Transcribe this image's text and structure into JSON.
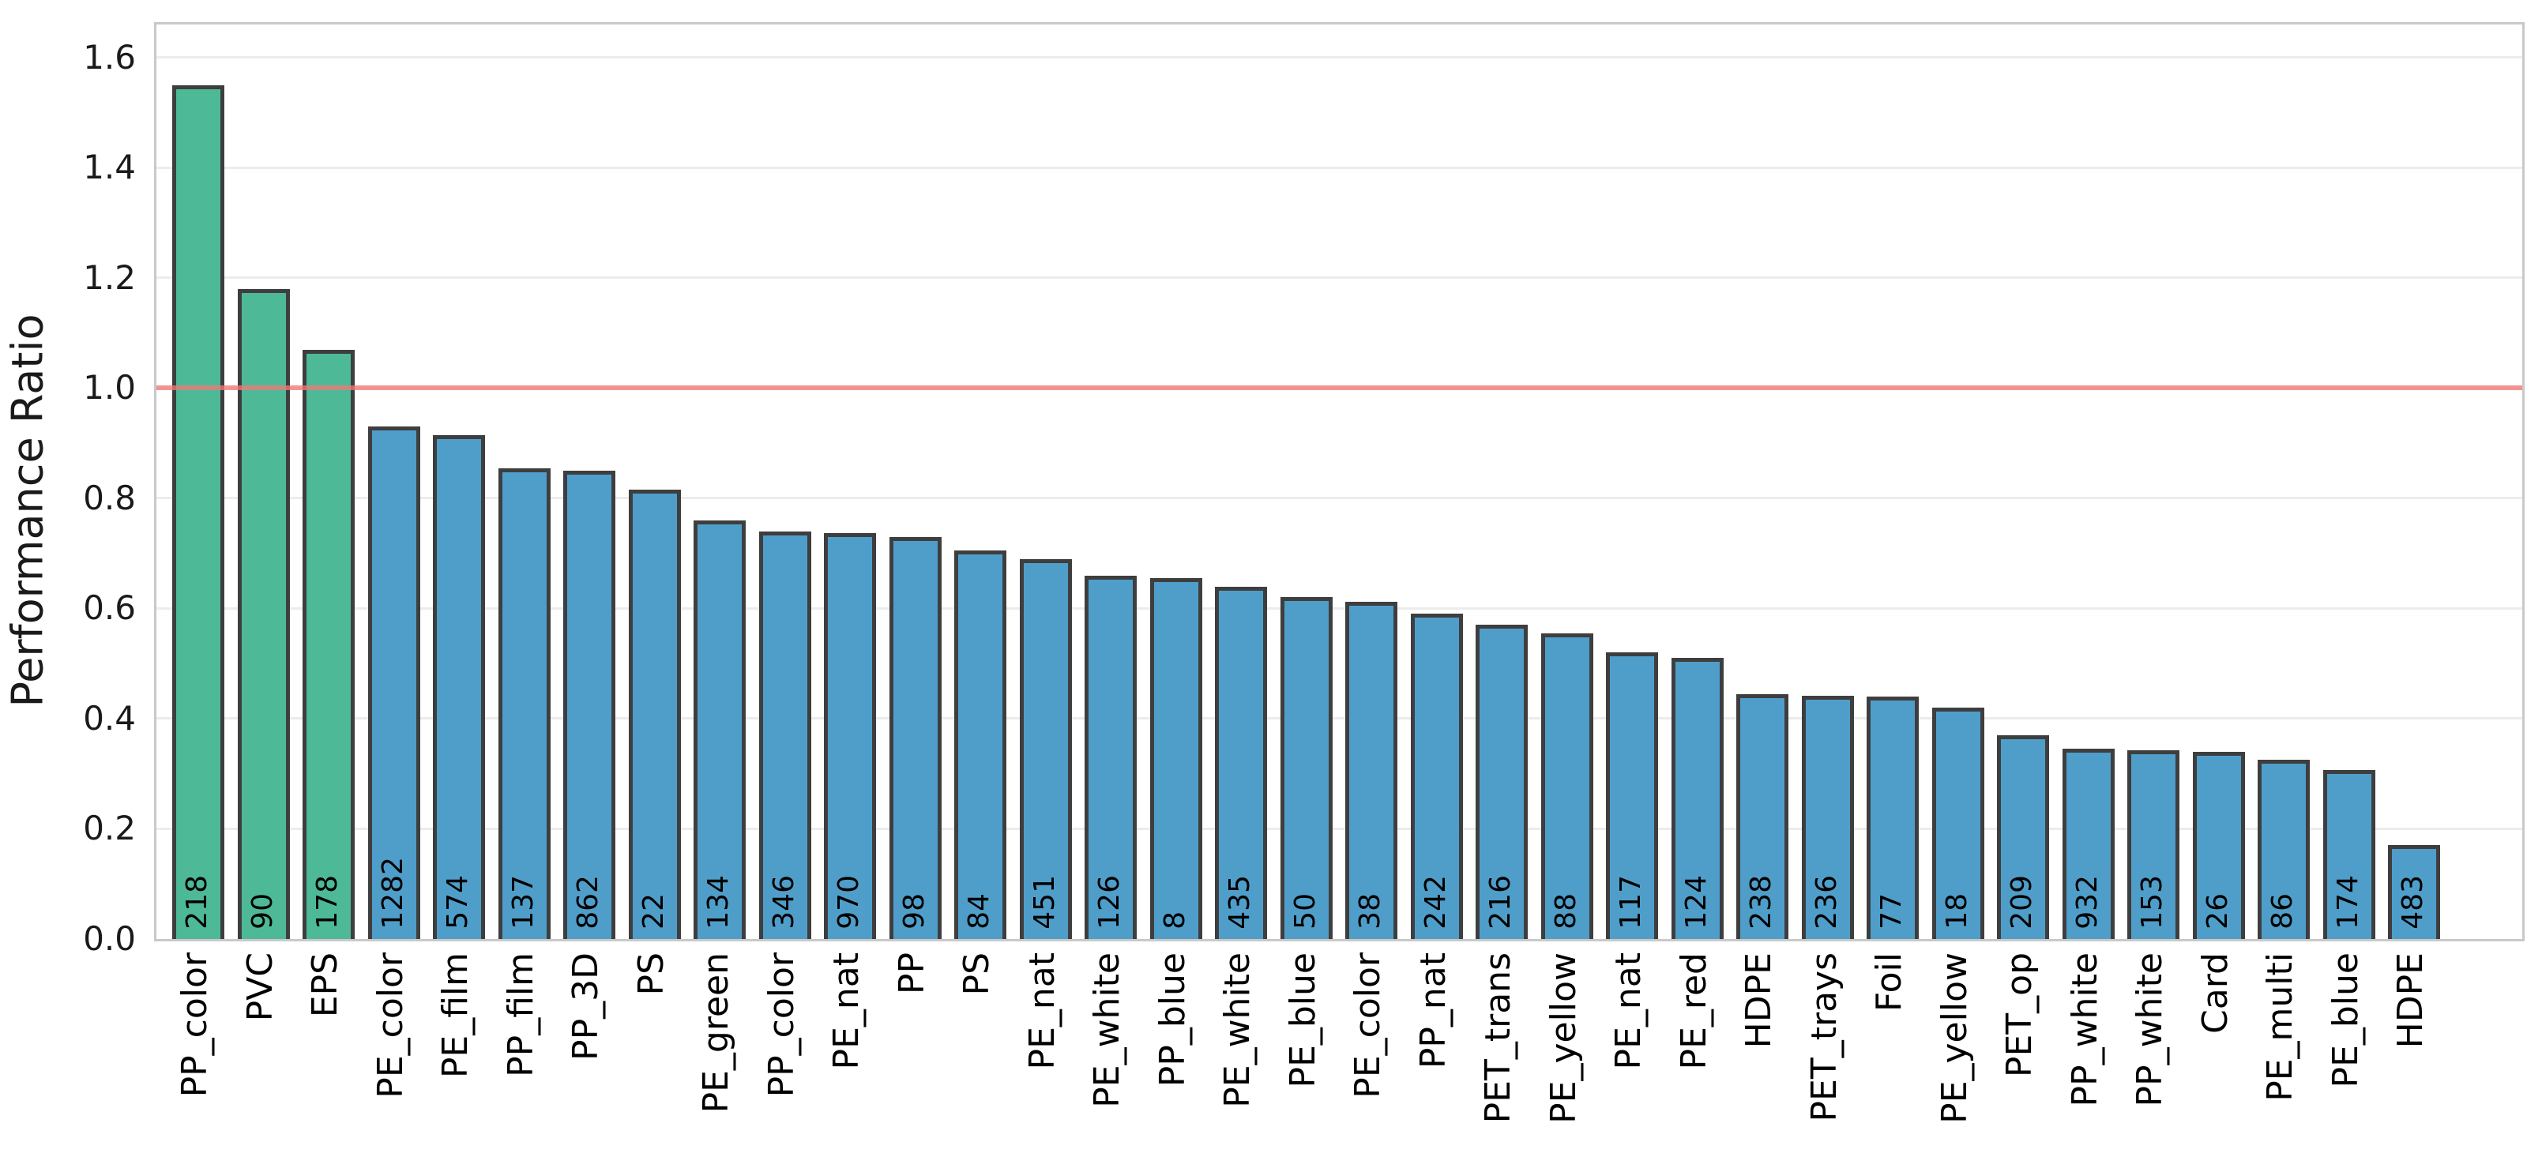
{
  "axis": {
    "y_title": "Performance Ratio"
  },
  "colors": {
    "bar_above_threshold": "#4eb996",
    "bar_below_threshold": "#4f9eca",
    "bar_edge": "#3e3e3e",
    "reference_line": "#ee7878",
    "grid": "#ececec",
    "plot_border": "#c9c9c9",
    "text": "#000000"
  },
  "chart_data": {
    "type": "bar",
    "title": "",
    "xlabel": "",
    "ylabel": "Performance Ratio",
    "ylim": [
      0,
      1.66
    ],
    "yticks": [
      0.0,
      0.2,
      0.4,
      0.6,
      0.8,
      1.0,
      1.2,
      1.4,
      1.6
    ],
    "grid": true,
    "legend": "none",
    "reference_line": {
      "value": 1.0,
      "meaning": "performance ratio = 1.0"
    },
    "color_rule": "bars with value >= 1.0 are green, bars below are blue",
    "bar_value_labels_inside_base": true,
    "bars": [
      {
        "label": "PP_color",
        "value": 1.55,
        "count": 218
      },
      {
        "label": "PVC",
        "value": 1.18,
        "count": 90
      },
      {
        "label": "EPS",
        "value": 1.07,
        "count": 178
      },
      {
        "label": "PE_color",
        "value": 0.93,
        "count": 1282
      },
      {
        "label": "PE_film",
        "value": 0.915,
        "count": 574
      },
      {
        "label": "PP_film",
        "value": 0.855,
        "count": 137
      },
      {
        "label": "PP_3D",
        "value": 0.85,
        "count": 862
      },
      {
        "label": "PS",
        "value": 0.815,
        "count": 22
      },
      {
        "label": "PE_green",
        "value": 0.76,
        "count": 134
      },
      {
        "label": "PP_color",
        "value": 0.74,
        "count": 346
      },
      {
        "label": "PE_nat",
        "value": 0.737,
        "count": 970
      },
      {
        "label": "PP",
        "value": 0.73,
        "count": 98
      },
      {
        "label": "PS",
        "value": 0.705,
        "count": 84
      },
      {
        "label": "PE_nat",
        "value": 0.69,
        "count": 451
      },
      {
        "label": "PE_white",
        "value": 0.66,
        "count": 126
      },
      {
        "label": "PP_blue",
        "value": 0.655,
        "count": 8
      },
      {
        "label": "PE_white",
        "value": 0.64,
        "count": 435
      },
      {
        "label": "PE_blue",
        "value": 0.62,
        "count": 50
      },
      {
        "label": "PE_color",
        "value": 0.612,
        "count": 38
      },
      {
        "label": "PP_nat",
        "value": 0.59,
        "count": 242
      },
      {
        "label": "PET_trans",
        "value": 0.57,
        "count": 216
      },
      {
        "label": "PE_yellow",
        "value": 0.555,
        "count": 88
      },
      {
        "label": "PE_nat",
        "value": 0.52,
        "count": 117
      },
      {
        "label": "PE_red",
        "value": 0.51,
        "count": 124
      },
      {
        "label": "HDPE",
        "value": 0.445,
        "count": 238
      },
      {
        "label": "PET_trays",
        "value": 0.442,
        "count": 236
      },
      {
        "label": "Foil",
        "value": 0.44,
        "count": 77
      },
      {
        "label": "PE_yellow",
        "value": 0.42,
        "count": 18
      },
      {
        "label": "PET_op",
        "value": 0.37,
        "count": 209
      },
      {
        "label": "PP_white",
        "value": 0.345,
        "count": 932
      },
      {
        "label": "PP_white",
        "value": 0.343,
        "count": 153
      },
      {
        "label": "Card",
        "value": 0.34,
        "count": 26
      },
      {
        "label": "PE_multi",
        "value": 0.325,
        "count": 86
      },
      {
        "label": "PE_blue",
        "value": 0.307,
        "count": 174
      },
      {
        "label": "HDPE",
        "value": 0.17,
        "count": 483
      }
    ]
  }
}
